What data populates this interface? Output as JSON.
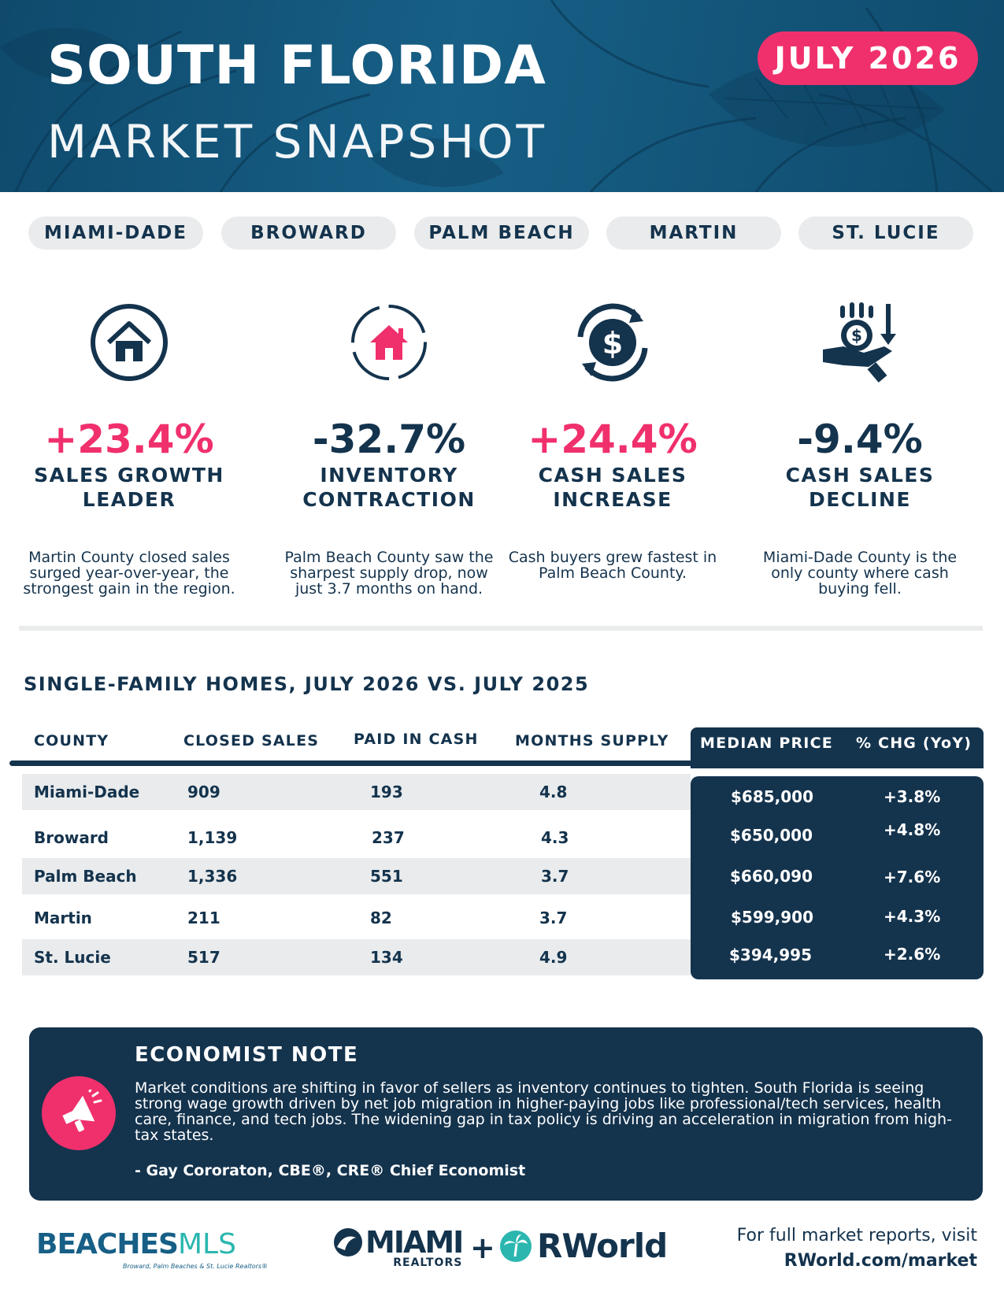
{
  "header": {
    "title": "SOUTH FLORIDA",
    "subtitle": "MARKET SNAPSHOT",
    "date_badge": "JULY 2026"
  },
  "counties": [
    "MIAMI-DADE",
    "BROWARD",
    "PALM BEACH",
    "MARTIN",
    "ST. LUCIE"
  ],
  "stats": [
    {
      "value": "+23.4%",
      "label": "SALES GROWTH LEADER",
      "desc": "Martin County closed sales surged year-over-year, the strongest gain in the region.",
      "icon": "house-icon",
      "color": "#f0306c"
    },
    {
      "value": "-32.7%",
      "label": "INVENTORY CONTRACTION",
      "desc": "Palm Beach County saw the sharpest supply drop, now just 3.7 months on hand.",
      "icon": "house-icon",
      "color": "#14334d"
    },
    {
      "value": "+24.4%",
      "label": "CASH SALES INCREASE",
      "desc": "Cash buyers grew fastest in Palm Beach County.",
      "icon": "dollar-cycle-icon",
      "color": "#f0306c"
    },
    {
      "value": "-9.4%",
      "label": "CASH SALES DECLINE",
      "desc": "Miami-Dade County is the only county where cash buying fell.",
      "icon": "hand-coins-icon",
      "color": "#14334d"
    }
  ],
  "table": {
    "title": "SINGLE-FAMILY HOMES, JULY 2026 VS. JULY 2025",
    "headers": [
      "COUNTY",
      "CLOSED SALES",
      "PAID IN CASH",
      "MONTHS SUPPLY",
      "MEDIAN PRICE",
      "% CHG (YoY)"
    ],
    "rows": [
      {
        "county": "Miami-Dade",
        "closed_sales": "909",
        "paid_in_cash": "193",
        "months_supply": "4.8",
        "median_price": "$685,000",
        "pct_chg": "+3.8%"
      },
      {
        "county": "Broward",
        "closed_sales": "1,139",
        "paid_in_cash": "237",
        "months_supply": "4.3",
        "median_price": "$650,000",
        "pct_chg": "+4.8%"
      },
      {
        "county": "Palm Beach",
        "closed_sales": "1,336",
        "paid_in_cash": "551",
        "months_supply": "3.7",
        "median_price": "$660,090",
        "pct_chg": "+7.6%"
      },
      {
        "county": "Martin",
        "closed_sales": "211",
        "paid_in_cash": "82",
        "months_supply": "3.7",
        "median_price": "$599,900",
        "pct_chg": "+4.3%"
      },
      {
        "county": "St. Lucie",
        "closed_sales": "517",
        "paid_in_cash": "134",
        "months_supply": "4.9",
        "median_price": "$394,995",
        "pct_chg": "+2.6%"
      }
    ]
  },
  "note": {
    "title": "ECONOMIST NOTE",
    "body": "Market conditions are shifting in favor of sellers as inventory continues to tighten. South Florida is seeing strong wage growth driven by net job migration in higher-paying jobs like professional/tech services, health care, finance, and tech jobs. The widening gap in tax policy is driving an acceleration in migration from high-tax states.",
    "signature": "- Gay Cororaton, CBE®, CRE® Chief Economist",
    "icon": "megaphone-icon"
  },
  "footer": {
    "beaches_logo_bold": "BEACHES",
    "beaches_logo_light": "MLS",
    "beaches_tagline": "Broward, Palm Beaches & St. Lucie Realtors®",
    "miami_logo": "MIAMI",
    "miami_logo_sub": "REALTORS",
    "plus": "+",
    "rworld_logo": "RWorld",
    "visit_text": "For full market reports, visit",
    "visit_link": "RWorld.com/market"
  },
  "colors": {
    "navy": "#14334d",
    "pink": "#f0306c",
    "grey": "#e9ebec",
    "teal": "#2bb7b0"
  }
}
